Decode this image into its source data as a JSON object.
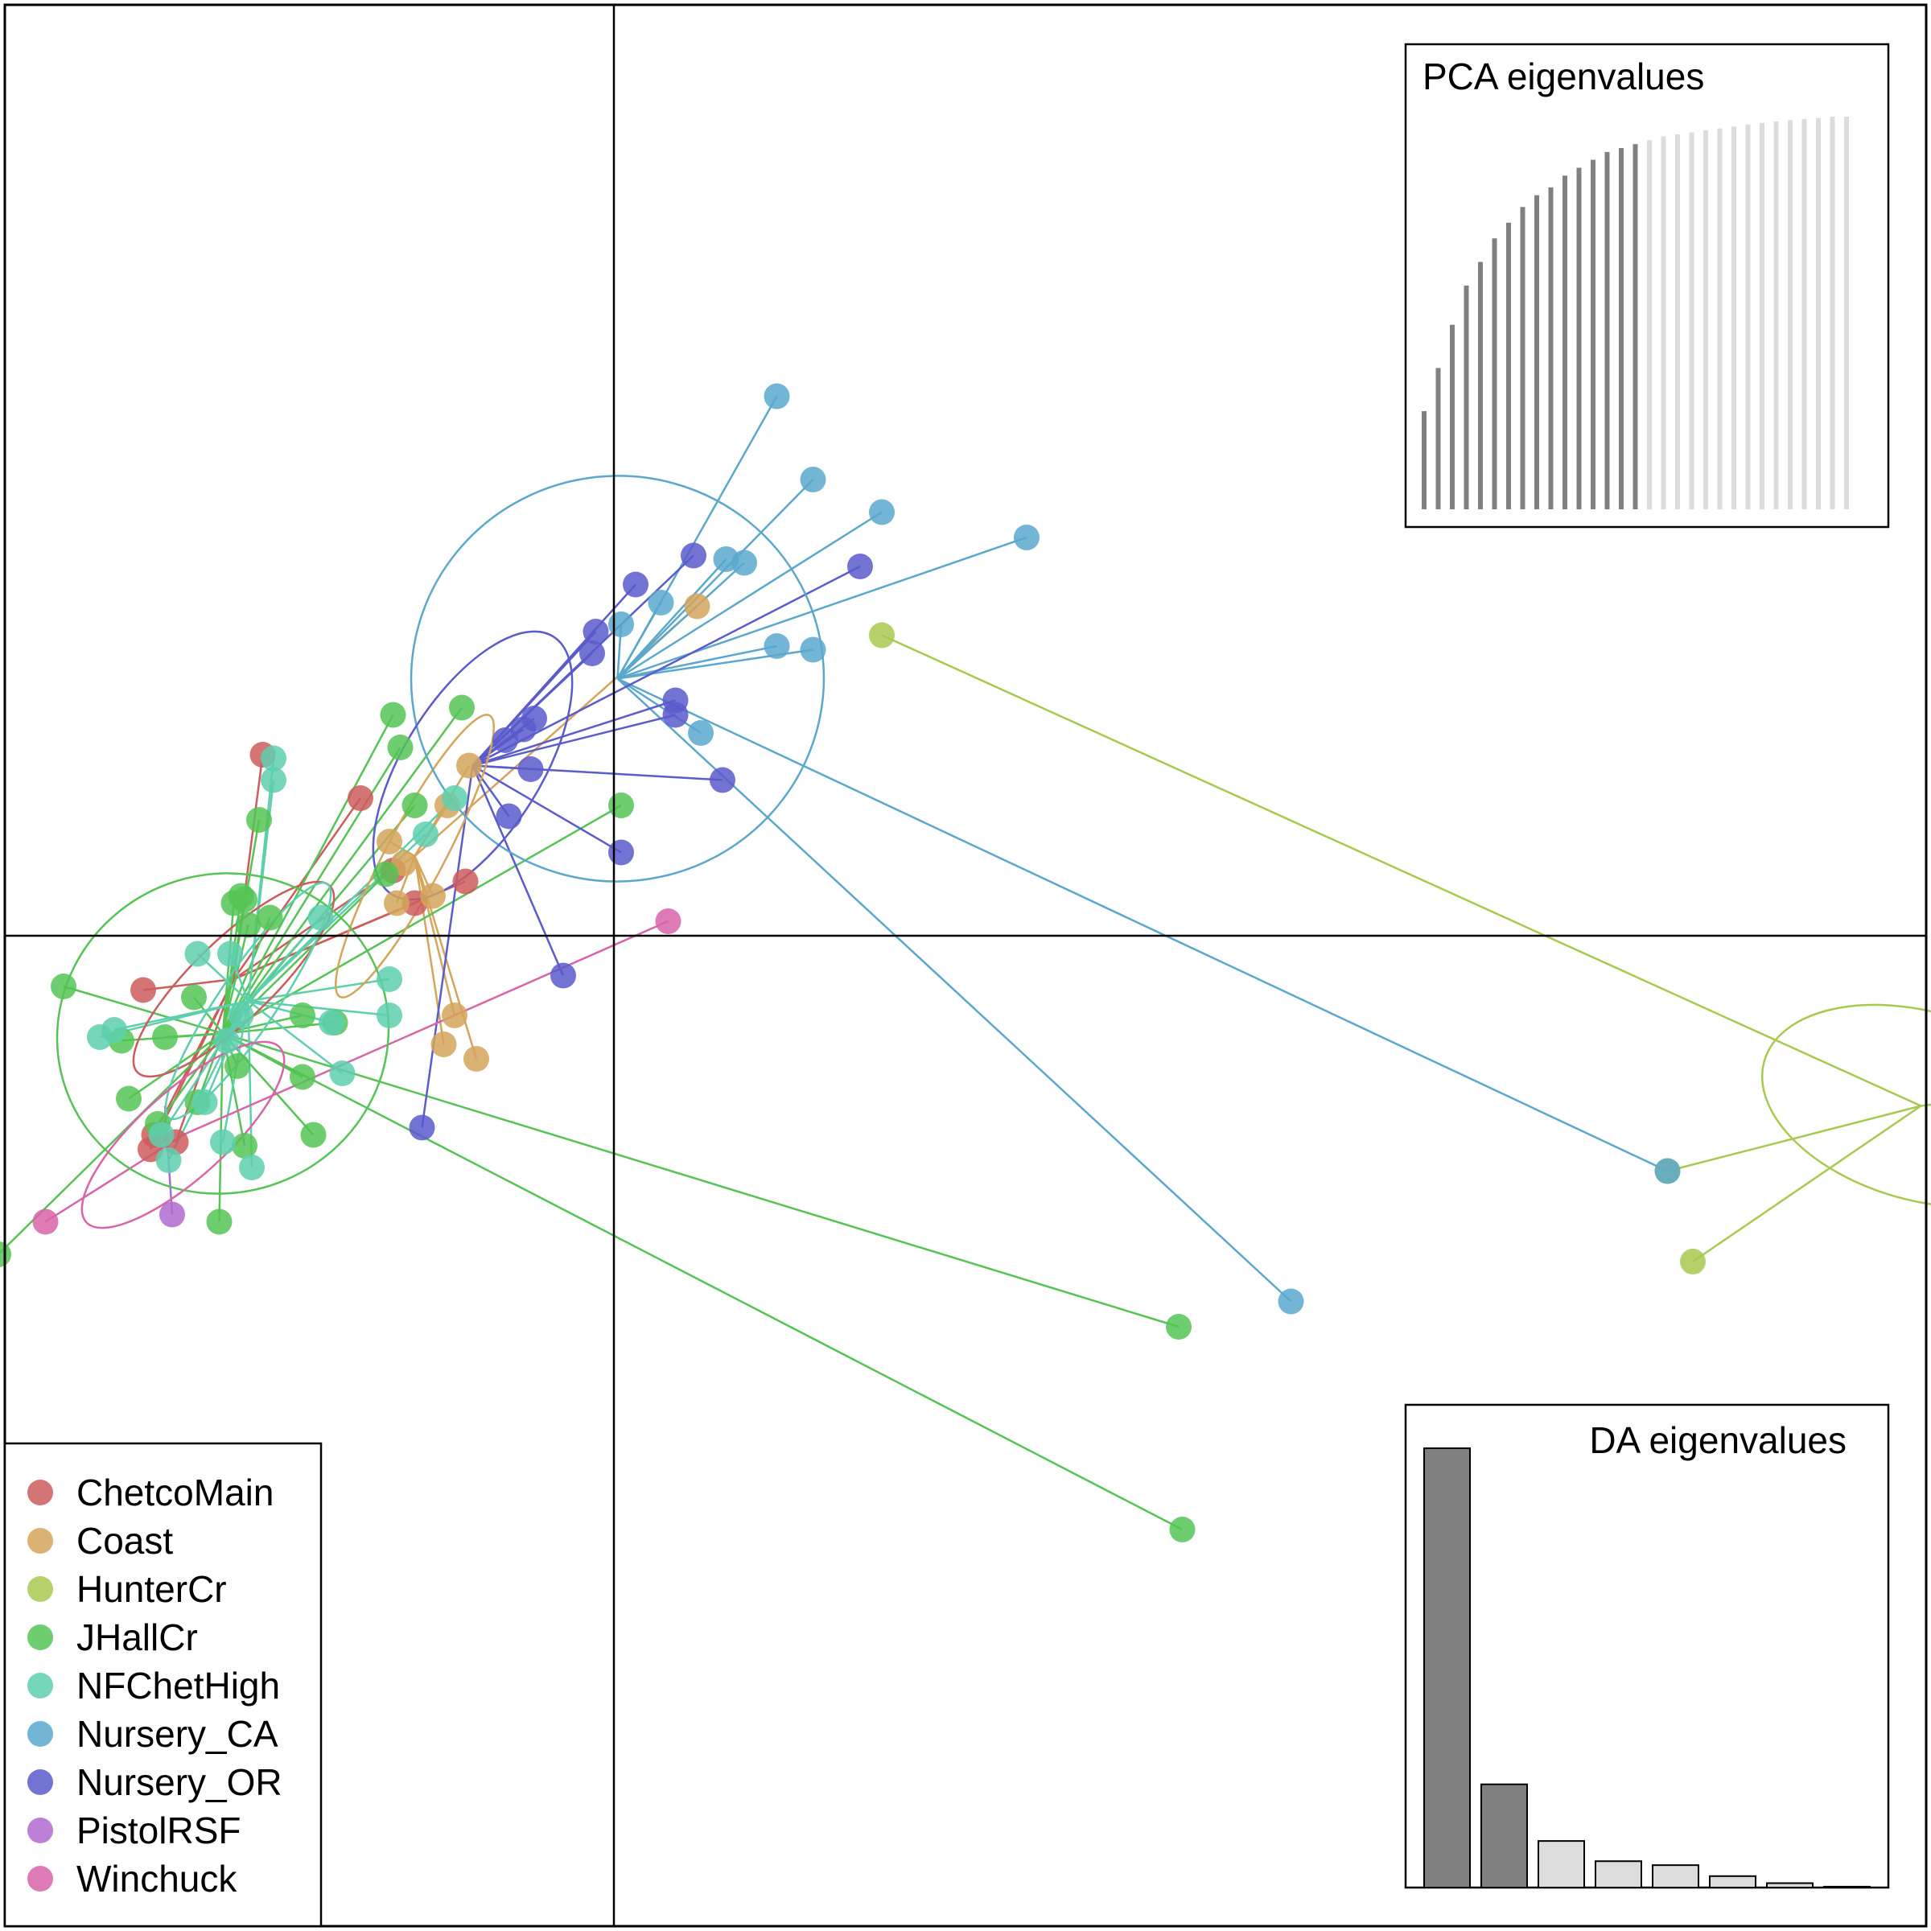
{
  "chart_data": {
    "type": "scatter",
    "title": "",
    "xlabel": "",
    "ylabel": "",
    "grid": false,
    "legend_position": "bottom-left",
    "series": [
      {
        "name": "ChetcoMain",
        "color": "#CD5C5C",
        "centroid": [
          -1.05,
          -0.12
        ],
        "ellipse": {
          "rx": 0.37,
          "ry": 0.11,
          "angle": 44
        },
        "points": [
          [
            -1.27,
            -0.55
          ],
          [
            -1.28,
            -0.59
          ],
          [
            -1.21,
            -0.57
          ],
          [
            -1.3,
            -0.15
          ],
          [
            -0.7,
            0.38
          ],
          [
            -0.97,
            0.5
          ],
          [
            -0.55,
            0.09
          ],
          [
            -0.41,
            0.15
          ],
          [
            -0.61,
            0.18
          ]
        ]
      },
      {
        "name": "Coast",
        "color": "#D4A55A",
        "centroid": [
          -0.55,
          0.22
        ],
        "ellipse": {
          "rx": 0.44,
          "ry": 0.08,
          "angle": 62
        },
        "points": [
          [
            -0.38,
            -0.34
          ],
          [
            -0.47,
            -0.3
          ],
          [
            -0.6,
            0.09
          ],
          [
            -0.58,
            0.2
          ],
          [
            -0.46,
            0.36
          ],
          [
            -0.5,
            0.11
          ],
          [
            -0.62,
            0.26
          ],
          [
            -0.4,
            0.47
          ],
          [
            0.23,
            0.91
          ],
          [
            -0.44,
            -0.22
          ]
        ]
      },
      {
        "name": "HunterCr",
        "color": "#A8C94F",
        "centroid": [
          3.61,
          -0.47
        ],
        "ellipse": {
          "rx": 0.45,
          "ry": 0.26,
          "angle": -16
        },
        "points": [
          [
            0.74,
            0.83
          ],
          [
            3.76,
            -0.45
          ],
          [
            2.91,
            -0.65
          ],
          [
            2.98,
            -0.9
          ]
        ]
      },
      {
        "name": "JHallCr",
        "color": "#55C455",
        "centroid": [
          -1.08,
          -0.27
        ],
        "ellipse": {
          "rx": 0.46,
          "ry": 0.44,
          "angle": 20
        },
        "points": [
          [
            -0.42,
            0.63
          ],
          [
            -0.63,
            0.17
          ],
          [
            -0.55,
            0.36
          ],
          [
            -1.05,
            0.09
          ],
          [
            -0.98,
            0.32
          ],
          [
            -1.02,
            0.1
          ],
          [
            -1.03,
            0.11
          ],
          [
            -1.01,
            0.03
          ],
          [
            -0.95,
            0.05
          ],
          [
            -0.61,
            0.61
          ],
          [
            -0.59,
            0.52
          ],
          [
            -1.52,
            -0.14
          ],
          [
            -1.24,
            -0.28
          ],
          [
            -1.04,
            -0.36
          ],
          [
            -0.86,
            -0.22
          ],
          [
            -1.15,
            -0.46
          ],
          [
            -1.09,
            -0.79
          ],
          [
            -1.36,
            -0.29
          ],
          [
            -1.34,
            -0.45
          ],
          [
            -0.77,
            -0.24
          ],
          [
            -1.16,
            -0.17
          ],
          [
            -0.86,
            -0.39
          ],
          [
            -1.26,
            -0.52
          ],
          [
            -1.02,
            -0.58
          ],
          [
            -0.83,
            -0.55
          ],
          [
            -1.7,
            -0.88
          ],
          [
            0.02,
            0.36
          ],
          [
            1.56,
            -1.08
          ],
          [
            1.57,
            -1.64
          ]
        ]
      },
      {
        "name": "NFChetHigh",
        "color": "#5ECFAE",
        "centroid": [
          -1.01,
          -0.18
        ],
        "ellipse": {
          "rx": 0.39,
          "ry": 0.08,
          "angle": 56
        },
        "points": [
          [
            -0.81,
            0.05
          ],
          [
            -0.44,
            0.38
          ],
          [
            -0.52,
            0.28
          ],
          [
            -0.94,
            0.43
          ],
          [
            -0.94,
            0.49
          ],
          [
            -1.38,
            -0.26
          ],
          [
            -1.42,
            -0.28
          ],
          [
            -1.15,
            -0.05
          ],
          [
            -0.78,
            -0.24
          ],
          [
            -0.75,
            -0.38
          ],
          [
            -1.07,
            -0.29
          ],
          [
            -1.03,
            -0.22
          ],
          [
            -1.25,
            -0.55
          ],
          [
            -1.23,
            -0.62
          ],
          [
            -1.08,
            -0.57
          ],
          [
            -1.0,
            -0.64
          ],
          [
            -1.13,
            -0.46
          ],
          [
            -0.62,
            -0.12
          ],
          [
            -0.62,
            -0.22
          ],
          [
            -1.06,
            -0.05
          ]
        ]
      },
      {
        "name": "Nursery_CA",
        "color": "#5AA8CC",
        "centroid": [
          0.01,
          0.71
        ],
        "ellipse": {
          "rx": 0.57,
          "ry": 0.56,
          "angle": 6
        },
        "points": [
          [
            0.45,
            1.49
          ],
          [
            0.55,
            1.26
          ],
          [
            0.74,
            1.17
          ],
          [
            1.14,
            1.1
          ],
          [
            0.31,
            1.04
          ],
          [
            0.36,
            1.03
          ],
          [
            0.13,
            0.92
          ],
          [
            0.02,
            0.86
          ],
          [
            0.45,
            0.8
          ],
          [
            0.55,
            0.79
          ],
          [
            0.24,
            0.56
          ],
          [
            1.87,
            -1.01
          ],
          [
            2.91,
            -0.65
          ]
        ]
      },
      {
        "name": "Nursery_OR",
        "color": "#5B5BCC",
        "centroid": [
          -0.39,
          0.47
        ],
        "ellipse": {
          "rx": 0.42,
          "ry": 0.19,
          "angle": 58
        },
        "points": [
          [
            0.22,
            1.05
          ],
          [
            0.06,
            0.97
          ],
          [
            0.68,
            1.02
          ],
          [
            -0.05,
            0.84
          ],
          [
            -0.06,
            0.78
          ],
          [
            0.17,
            0.65
          ],
          [
            0.17,
            0.61
          ],
          [
            -0.22,
            0.6
          ],
          [
            -0.25,
            0.57
          ],
          [
            -0.3,
            0.54
          ],
          [
            -0.23,
            0.46
          ],
          [
            0.3,
            0.43
          ],
          [
            -0.29,
            0.33
          ],
          [
            0.02,
            0.23
          ],
          [
            -0.14,
            -0.11
          ],
          [
            -0.53,
            -0.53
          ]
        ]
      },
      {
        "name": "PistolRSF",
        "color": "#B06ACF",
        "centroid": [
          -1.24,
          -0.47
        ],
        "points": [
          [
            -1.22,
            -0.77
          ]
        ]
      },
      {
        "name": "Winchuck",
        "color": "#D864A9",
        "centroid": [
          -1.19,
          -0.55
        ],
        "ellipse": {
          "rx": 0.36,
          "ry": 0.12,
          "angle": 42
        },
        "points": [
          [
            -1.57,
            -0.79
          ],
          [
            0.15,
            0.04
          ]
        ]
      }
    ],
    "pca_eigenvalues": {
      "title": "PCA eigenvalues",
      "values": [
        0.25,
        0.36,
        0.47,
        0.57,
        0.63,
        0.69,
        0.73,
        0.77,
        0.8,
        0.82,
        0.85,
        0.87,
        0.89,
        0.91,
        0.92,
        0.93,
        0.94,
        0.95,
        0.955,
        0.96,
        0.965,
        0.97,
        0.975,
        0.98,
        0.984,
        0.988,
        0.991,
        0.994,
        0.997,
        1.0,
        1.0
      ],
      "retained": 16
    },
    "da_eigenvalues": {
      "title": "DA eigenvalues",
      "values": [
        100,
        23.5,
        10.6,
        6.0,
        5.1,
        2.6,
        1.0,
        0.2
      ],
      "retained": 2
    }
  }
}
